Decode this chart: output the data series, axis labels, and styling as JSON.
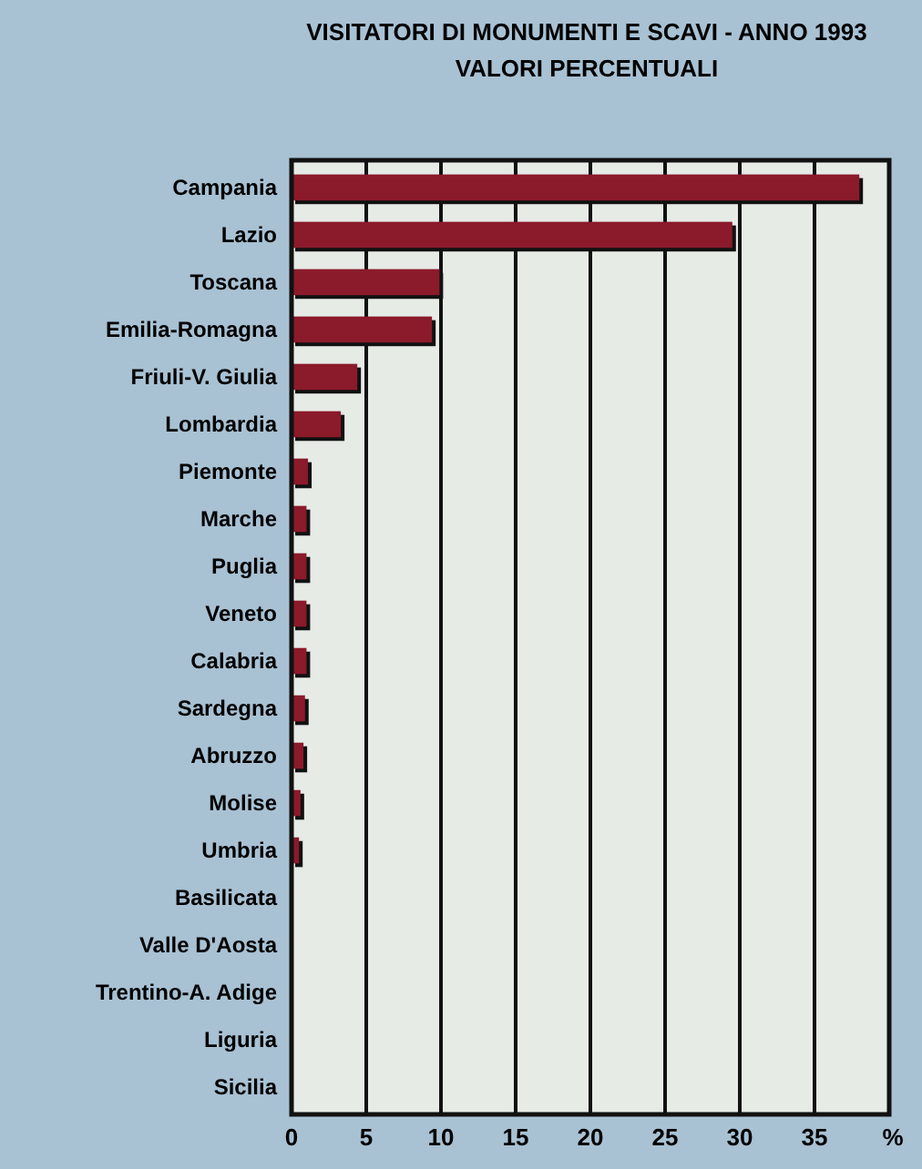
{
  "chart_data": {
    "type": "bar",
    "orientation": "horizontal",
    "title": "VISITATORI DI MONUMENTI E SCAVI - ANNO 1993",
    "subtitle": "VALORI PERCENTUALI",
    "xlabel": "%",
    "categories": [
      "Campania",
      "Lazio",
      "Toscana",
      "Emilia-Romagna",
      "Friuli-V. Giulia",
      "Lombardia",
      "Piemonte",
      "Marche",
      "Puglia",
      "Veneto",
      "Calabria",
      "Sardegna",
      "Abruzzo",
      "Molise",
      "Umbria",
      "Basilicata",
      "Valle D'Aosta",
      "Trentino-A. Adige",
      "Liguria",
      "Sicilia"
    ],
    "values": [
      38,
      29.5,
      9.9,
      9.4,
      4.4,
      3.3,
      1.1,
      1,
      1,
      1,
      1,
      0.9,
      0.8,
      0.6,
      0.5,
      0,
      0,
      0,
      0,
      0
    ],
    "color": "#8b1a2b",
    "xlim": [
      0,
      40
    ],
    "xticks": [
      0,
      5,
      10,
      15,
      20,
      25,
      30,
      35
    ],
    "grid": "x"
  }
}
